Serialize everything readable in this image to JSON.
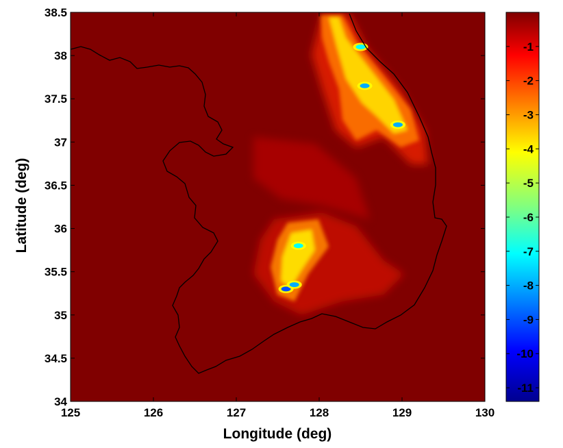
{
  "chart_data": {
    "type": "heatmap",
    "xlabel": "Longitude (deg)",
    "ylabel": "Latitude (deg)",
    "xlim": [
      125,
      130
    ],
    "ylim": [
      34,
      38.5
    ],
    "xticks": [
      "125",
      "126",
      "127",
      "128",
      "129",
      "130"
    ],
    "yticks": [
      "34",
      "34.5",
      "35",
      "35.5",
      "36",
      "36.5",
      "37",
      "37.5",
      "38",
      "38.5"
    ],
    "colorbar": {
      "colormap": "jet",
      "range": [
        -11.4,
        0
      ],
      "ticks": [
        "-1",
        "-2",
        "-3",
        "-4",
        "-5",
        "-6",
        "-7",
        "-8",
        "-9",
        "-10",
        "-11"
      ],
      "background_value": 0
    },
    "hotspots": [
      {
        "lon": 128.55,
        "lat": 37.65,
        "value": -8
      },
      {
        "lon": 128.95,
        "lat": 37.2,
        "value": -8
      },
      {
        "lon": 128.5,
        "lat": 38.1,
        "value": -7
      },
      {
        "lon": 127.75,
        "lat": 35.8,
        "value": -7
      },
      {
        "lon": 127.6,
        "lat": 35.3,
        "value": -9
      },
      {
        "lon": 127.7,
        "lat": 35.35,
        "value": -8
      }
    ],
    "grid": false,
    "legend": "colorbar-right"
  }
}
